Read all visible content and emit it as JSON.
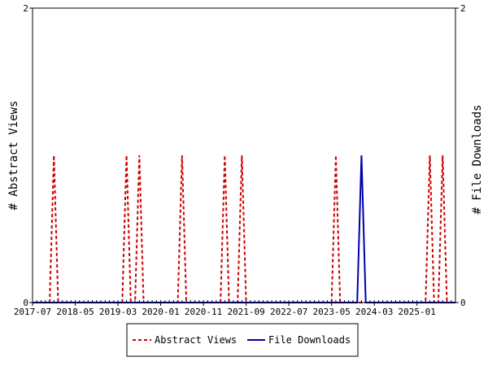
{
  "chart_data": {
    "type": "line",
    "title": "",
    "x_tick_labels": [
      "2017-07",
      "2018-05",
      "2019-03",
      "2020-01",
      "2020-11",
      "2021-09",
      "2022-07",
      "2023-05",
      "2024-03",
      "2025-01"
    ],
    "x_start_month": "2017-07",
    "x_end_month": "2025-10",
    "y_left": {
      "label": "# Abstract Views",
      "ylim": [
        0,
        2
      ],
      "ticks": [
        "0",
        "2"
      ]
    },
    "y_right": {
      "label": "# File Downloads",
      "ylim": [
        0,
        2
      ],
      "ticks": [
        "0",
        "2"
      ]
    },
    "legend_position": "bottom-center",
    "series": [
      {
        "name": "Abstract Views",
        "axis": "left",
        "style": "dashed",
        "color": "#cc0000",
        "points": [
          {
            "month": "2017-12",
            "value": 1
          },
          {
            "month": "2019-05",
            "value": 1
          },
          {
            "month": "2019-08",
            "value": 1
          },
          {
            "month": "2020-06",
            "value": 1
          },
          {
            "month": "2021-04",
            "value": 1
          },
          {
            "month": "2021-08",
            "value": 1
          },
          {
            "month": "2023-06",
            "value": 1
          },
          {
            "month": "2025-04",
            "value": 1
          },
          {
            "month": "2025-07",
            "value": 1
          }
        ]
      },
      {
        "name": "File Downloads",
        "axis": "right",
        "style": "solid",
        "color": "#0000aa",
        "points": [
          {
            "month": "2023-12",
            "value": 1
          }
        ]
      }
    ]
  }
}
